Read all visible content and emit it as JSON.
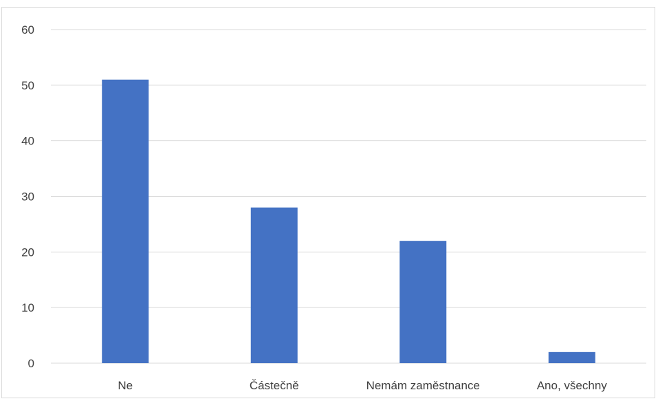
{
  "chart_data": {
    "type": "bar",
    "categories": [
      "Ne",
      "Částečně",
      "Nemám zaměstnance",
      "Ano, všechny"
    ],
    "values": [
      51,
      28,
      22,
      2
    ],
    "ylim": [
      0,
      60
    ],
    "yticks": [
      0,
      10,
      20,
      30,
      40,
      50,
      60
    ],
    "grid": true,
    "bar_color": "#4472c4",
    "grid_color": "#d9d9d9"
  }
}
